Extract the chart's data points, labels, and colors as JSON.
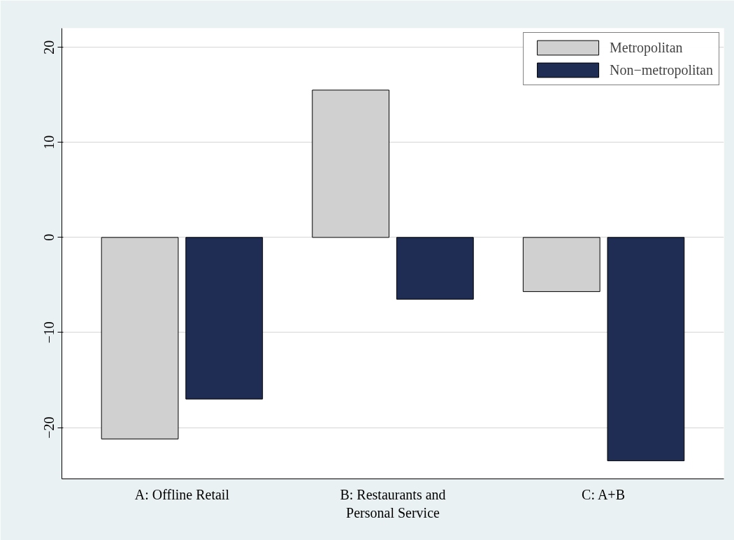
{
  "chart_data": {
    "type": "bar",
    "categories": [
      "A: Offline Retail",
      "B: Restaurants and\nPersonal Service",
      "C: A+B"
    ],
    "series": [
      {
        "name": "Metropolitan",
        "color": "#d0d0d0",
        "values": [
          -21.2,
          15.5,
          -5.7
        ]
      },
      {
        "name": "Non−metropolitan",
        "color": "#1f2d54",
        "values": [
          -17.0,
          -6.5,
          -23.5
        ]
      }
    ],
    "ylim": [
      -25.4,
      22.0
    ],
    "yticks": [
      {
        "value": -20,
        "label": "−20"
      },
      {
        "value": -10,
        "label": "−10"
      },
      0,
      10,
      20
    ],
    "grid": "y",
    "legend": "top right"
  }
}
